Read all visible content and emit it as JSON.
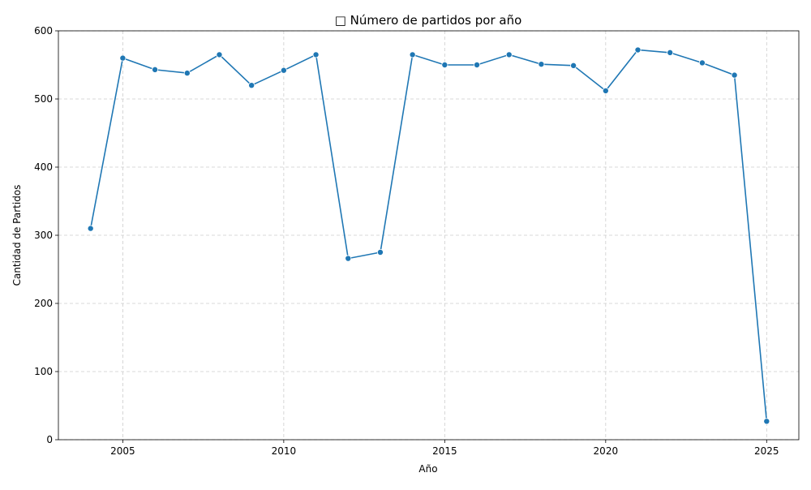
{
  "chart_data": {
    "type": "line",
    "title": "□ Número de partidos por año",
    "xlabel": "Año",
    "ylabel": "Cantidad de Partidos",
    "xlim": [
      2003,
      2026
    ],
    "ylim": [
      0,
      600
    ],
    "xticks": [
      2005,
      2010,
      2015,
      2020,
      2025
    ],
    "yticks": [
      0,
      100,
      200,
      300,
      400,
      500,
      600
    ],
    "grid": true,
    "legend": "none",
    "series": [
      {
        "color": "#1f77b4",
        "marker": "circle",
        "x": [
          2004,
          2005,
          2006,
          2007,
          2008,
          2009,
          2010,
          2011,
          2012,
          2013,
          2014,
          2015,
          2016,
          2017,
          2018,
          2019,
          2020,
          2021,
          2022,
          2023,
          2024,
          2025
        ],
        "y": [
          310,
          560,
          543,
          538,
          565,
          520,
          542,
          565,
          266,
          275,
          565,
          550,
          550,
          565,
          551,
          549,
          512,
          572,
          568,
          553,
          535,
          27
        ]
      }
    ]
  }
}
